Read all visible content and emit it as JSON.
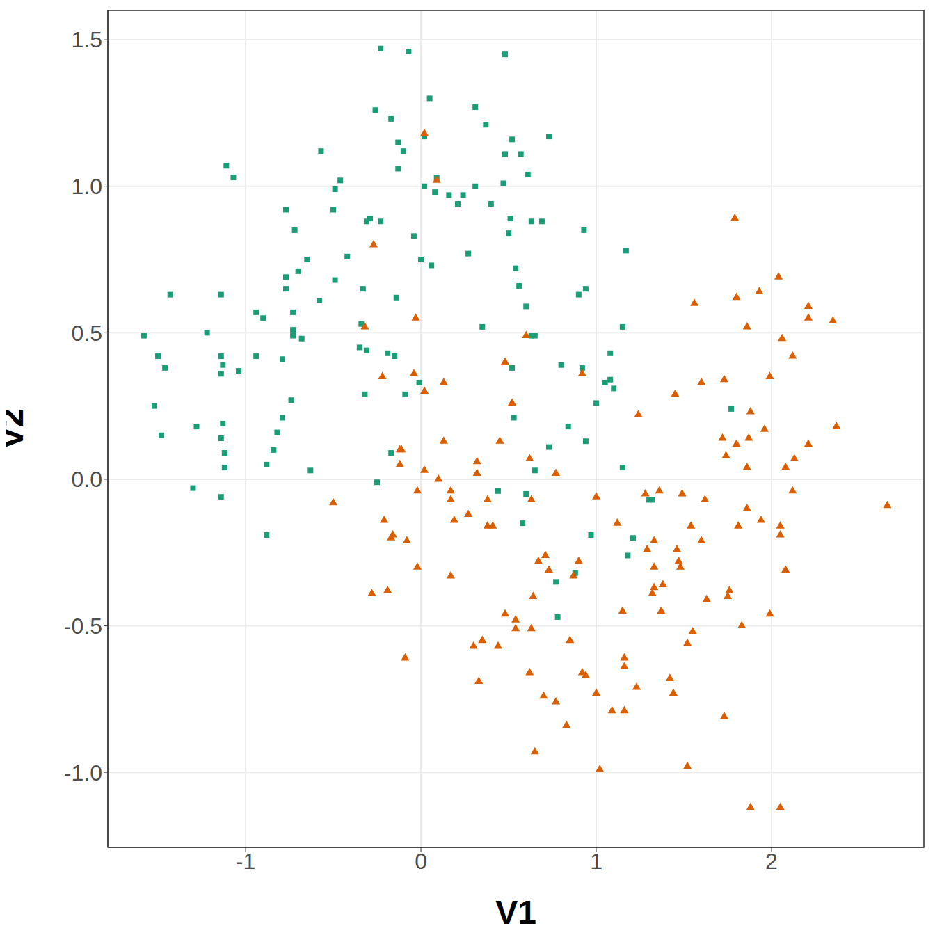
{
  "chart_data": {
    "type": "scatter",
    "x_label": "V1",
    "y_label": "V2",
    "xlim": [
      -1.786,
      2.869
    ],
    "ylim": [
      -1.256,
      1.6
    ],
    "xticks": [
      -1,
      0,
      1,
      2
    ],
    "yticks": [
      {
        "value": -1,
        "label": "-1.0"
      },
      {
        "value": -0.5,
        "label": "-0.5"
      },
      {
        "value": 0,
        "label": "0.0"
      },
      {
        "value": 0.5,
        "label": "0.5"
      },
      {
        "value": 1,
        "label": "1.0"
      },
      {
        "value": 1.5,
        "label": "1.5"
      }
    ],
    "grid": true,
    "series": [
      {
        "color": "#1b9e77",
        "marker": "square",
        "x": [
          -0.23,
          -0.07,
          0.48,
          0.05,
          -0.26,
          0.31,
          0.37,
          -0.17,
          0.73,
          0.02,
          -0.13,
          -0.1,
          0.52,
          0.48,
          0.57,
          -1.11,
          -1.07,
          -0.13,
          0.61,
          0.02,
          0.47,
          0.09,
          -0.57,
          -0.49,
          -0.46,
          0.08,
          0.16,
          0.24,
          0.21,
          0.31,
          0.4,
          -0.77,
          -0.5,
          -0.23,
          -0.31,
          -0.29,
          0.51,
          0.63,
          0.69,
          0.93,
          -0.72,
          -0.04,
          0.5,
          -0.49,
          -0.42,
          -0.65,
          0.0,
          0.06,
          -0.7,
          0.27,
          1.17,
          0.54,
          -0.77,
          -0.77,
          0.56,
          0.94,
          -1.43,
          -1.14,
          -0.58,
          -0.94,
          -0.9,
          -0.14,
          0.9,
          0.6,
          -0.73,
          -0.73,
          -0.73,
          -0.68,
          -1.58,
          -1.22,
          -1.5,
          -1.46,
          -0.94,
          -0.79,
          -1.14,
          -1.13,
          -1.14,
          -1.04,
          -0.34,
          -0.35,
          -0.31,
          0.35,
          1.15,
          1.08,
          -0.33,
          -0.19,
          -0.15,
          -0.01,
          0.63,
          0.65,
          0.52,
          0.8,
          0.92,
          1.08,
          1.05,
          1.1,
          1.0,
          0.53,
          -0.32,
          -0.74,
          -0.09,
          -1.52,
          -1.28,
          -0.79,
          -1.13,
          -1.48,
          -0.82,
          -1.14,
          -0.84,
          -1.12,
          -1.12,
          -0.88,
          -0.63,
          -0.17,
          1.77,
          0.73,
          0.84,
          0.94,
          1.15,
          0.65,
          -1.3,
          -1.14,
          -0.25,
          0.44,
          0.6,
          1.3,
          1.32,
          -0.88,
          0.58,
          0.97,
          1.21,
          1.18,
          0.77,
          0.88,
          0.78
        ],
        "y": [
          1.47,
          1.46,
          1.45,
          1.3,
          1.26,
          1.27,
          1.21,
          1.23,
          1.17,
          1.17,
          1.15,
          1.12,
          1.16,
          1.11,
          1.11,
          1.07,
          1.03,
          1.06,
          1.04,
          1.0,
          1.01,
          1.03,
          1.12,
          0.99,
          1.02,
          0.98,
          0.97,
          0.97,
          0.94,
          1.0,
          0.94,
          0.92,
          0.92,
          0.88,
          0.88,
          0.89,
          0.89,
          0.88,
          0.88,
          0.85,
          0.85,
          0.83,
          0.84,
          0.68,
          0.76,
          0.75,
          0.75,
          0.73,
          0.71,
          0.77,
          0.78,
          0.72,
          0.69,
          0.65,
          0.66,
          0.65,
          0.63,
          0.63,
          0.61,
          0.57,
          0.55,
          0.62,
          0.63,
          0.59,
          0.57,
          0.51,
          0.49,
          0.48,
          0.49,
          0.5,
          0.42,
          0.38,
          0.42,
          0.41,
          0.42,
          0.39,
          0.36,
          0.37,
          0.53,
          0.45,
          0.44,
          0.52,
          0.52,
          0.43,
          0.65,
          0.43,
          0.42,
          0.33,
          0.49,
          0.49,
          0.38,
          0.39,
          0.38,
          0.34,
          0.33,
          0.31,
          0.26,
          0.21,
          0.29,
          0.27,
          0.29,
          0.25,
          0.18,
          0.21,
          0.19,
          0.15,
          0.16,
          0.14,
          0.1,
          0.09,
          0.04,
          0.05,
          0.03,
          0.09,
          0.24,
          0.11,
          0.18,
          0.13,
          0.04,
          0.03,
          -0.03,
          -0.06,
          -0.01,
          -0.04,
          -0.05,
          -0.07,
          -0.07,
          -0.19,
          -0.15,
          -0.19,
          -0.2,
          -0.26,
          -0.35,
          -0.32,
          -0.47
        ]
      },
      {
        "color": "#d95f02",
        "marker": "triangle",
        "x": [
          0.02,
          0.09,
          -0.27,
          1.79,
          1.93,
          1.8,
          2.04,
          1.56,
          2.21,
          2.21,
          2.35,
          1.86,
          -0.32,
          -0.03,
          0.6,
          2.06,
          2.12,
          0.48,
          -0.04,
          0.92,
          1.99,
          -0.22,
          0.13,
          1.73,
          1.6,
          1.45,
          0.02,
          0.52,
          1.88,
          1.24,
          1.96,
          2.37,
          1.72,
          1.87,
          2.21,
          1.8,
          0.13,
          0.45,
          -0.11,
          -0.12,
          1.74,
          2.13,
          0.62,
          0.32,
          -0.12,
          2.08,
          1.86,
          0.02,
          0.32,
          0.77,
          0.1,
          2.66,
          -0.5,
          -0.02,
          0.17,
          1.28,
          1.36,
          1.49,
          2.12,
          1.62,
          1.0,
          0.17,
          0.38,
          0.63,
          0.27,
          -0.21,
          0.19,
          1.86,
          1.12,
          0.38,
          0.41,
          1.54,
          1.94,
          1.81,
          2.05,
          2.05,
          -0.16,
          -0.17,
          -0.08,
          1.33,
          1.6,
          0.71,
          1.29,
          1.46,
          0.67,
          1.47,
          1.48,
          -0.02,
          0.73,
          1.33,
          0.9,
          2.08,
          0.87,
          0.17,
          1.38,
          1.33,
          1.76,
          1.32,
          -0.19,
          -0.28,
          1.75,
          0.64,
          1.63,
          1.37,
          1.15,
          0.48,
          1.99,
          0.54,
          0.54,
          0.63,
          1.55,
          1.83,
          1.52,
          0.35,
          0.85,
          0.3,
          0.44,
          -0.09,
          1.16,
          1.16,
          0.62,
          0.92,
          0.94,
          1.42,
          0.33,
          1.23,
          1.44,
          0.7,
          1.0,
          0.77,
          1.09,
          1.16,
          1.73,
          0.83,
          0.65,
          1.52,
          1.02,
          1.88,
          2.05
        ],
        "y": [
          1.18,
          1.02,
          0.8,
          0.89,
          0.64,
          0.62,
          0.69,
          0.6,
          0.59,
          0.55,
          0.54,
          0.52,
          0.52,
          0.55,
          0.49,
          0.48,
          0.42,
          0.4,
          0.36,
          0.36,
          0.35,
          0.35,
          0.33,
          0.34,
          0.33,
          0.29,
          0.3,
          0.26,
          0.23,
          0.22,
          0.17,
          0.18,
          0.14,
          0.14,
          0.12,
          0.12,
          0.13,
          0.13,
          0.1,
          0.1,
          0.08,
          0.07,
          0.07,
          0.06,
          0.05,
          0.04,
          0.04,
          0.03,
          0.02,
          0.02,
          0.0,
          -0.09,
          -0.08,
          -0.04,
          -0.04,
          -0.05,
          -0.04,
          -0.05,
          -0.04,
          -0.07,
          -0.06,
          -0.07,
          -0.07,
          -0.07,
          -0.12,
          -0.14,
          -0.14,
          -0.1,
          -0.15,
          -0.16,
          -0.16,
          -0.16,
          -0.14,
          -0.16,
          -0.16,
          -0.19,
          -0.19,
          -0.2,
          -0.21,
          -0.21,
          -0.21,
          -0.26,
          -0.24,
          -0.24,
          -0.28,
          -0.28,
          -0.3,
          -0.3,
          -0.31,
          -0.3,
          -0.28,
          -0.31,
          -0.33,
          -0.33,
          -0.36,
          -0.37,
          -0.38,
          -0.39,
          -0.38,
          -0.39,
          -0.4,
          -0.4,
          -0.41,
          -0.45,
          -0.45,
          -0.46,
          -0.46,
          -0.48,
          -0.51,
          -0.51,
          -0.52,
          -0.5,
          -0.56,
          -0.55,
          -0.55,
          -0.57,
          -0.57,
          -0.61,
          -0.61,
          -0.64,
          -0.66,
          -0.66,
          -0.67,
          -0.68,
          -0.69,
          -0.71,
          -0.73,
          -0.74,
          -0.73,
          -0.76,
          -0.79,
          -0.79,
          -0.81,
          -0.84,
          -0.93,
          -0.98,
          -0.99,
          -1.12,
          -1.12
        ]
      }
    ]
  }
}
